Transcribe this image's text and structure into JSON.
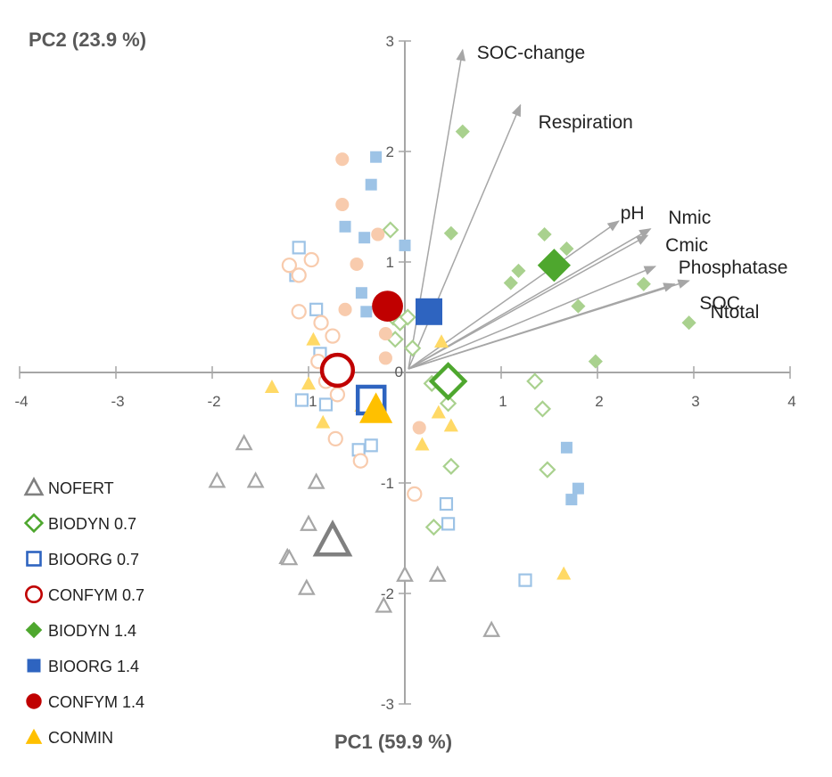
{
  "chart_data": {
    "type": "scatter",
    "title": "",
    "xlabel": "PC1 (59.9 %)",
    "ylabel": "PC2 (23.9 %)",
    "xlim": [
      -4,
      4
    ],
    "ylim": [
      -3,
      3
    ],
    "xticks": [
      "-4",
      "-3",
      "-2",
      "-1",
      "0",
      "1",
      "2",
      "3",
      "4"
    ],
    "yticks": [
      "-3",
      "-2",
      "-1",
      "0",
      "1",
      "2",
      "3"
    ],
    "grid": false,
    "legend_position": "bottom-left",
    "loadings": [
      {
        "label": "SOC-change",
        "x": 0.6,
        "y": 2.92
      },
      {
        "label": "Respiration",
        "x": 1.2,
        "y": 2.42
      },
      {
        "label": "pH",
        "x": 2.22,
        "y": 1.37
      },
      {
        "label": "Nmic",
        "x": 2.55,
        "y": 1.3
      },
      {
        "label": "Cmic",
        "x": 2.52,
        "y": 1.24
      },
      {
        "label": "Phosphatase",
        "x": 2.6,
        "y": 0.96
      },
      {
        "label": "SOC",
        "x": 2.8,
        "y": 0.8
      },
      {
        "label": "Ntotal",
        "x": 2.95,
        "y": 0.83
      }
    ],
    "series": [
      {
        "name": "NOFERT",
        "marker": "triangle",
        "fill": false,
        "color": "#808080",
        "light": "#a6a6a6",
        "points": [
          [
            -1.67,
            -0.64
          ],
          [
            -1.95,
            -0.98
          ],
          [
            -1.55,
            -0.98
          ],
          [
            -0.92,
            -0.99
          ],
          [
            -1.0,
            -1.37
          ],
          [
            -1.22,
            -1.67
          ],
          [
            -1.2,
            -1.68
          ],
          [
            -1.02,
            -1.95
          ],
          [
            -0.22,
            -2.11
          ],
          [
            0.0,
            -1.83
          ],
          [
            0.34,
            -1.83
          ],
          [
            0.9,
            -2.33
          ]
        ],
        "mean": [
          -0.75,
          -1.52
        ]
      },
      {
        "name": "BIODYN 0.7",
        "marker": "diamond",
        "fill": false,
        "color": "#4ea72e",
        "light": "#a9d18e",
        "points": [
          [
            -0.15,
            1.29
          ],
          [
            -0.1,
            0.3
          ],
          [
            -0.12,
            0.5
          ],
          [
            -0.05,
            0.45
          ],
          [
            0.03,
            0.5
          ],
          [
            0.08,
            0.22
          ],
          [
            0.28,
            -0.1
          ],
          [
            0.45,
            -0.28
          ],
          [
            0.48,
            -0.85
          ],
          [
            0.3,
            -1.4
          ],
          [
            1.35,
            -0.08
          ],
          [
            1.43,
            -0.33
          ],
          [
            1.48,
            -0.88
          ]
        ],
        "mean": [
          0.45,
          -0.08
        ]
      },
      {
        "name": "BIOORG 0.7",
        "marker": "square",
        "fill": false,
        "color": "#2e64c0",
        "light": "#9dc3e6",
        "points": [
          [
            -1.1,
            1.13
          ],
          [
            -1.13,
            0.88
          ],
          [
            -0.92,
            0.57
          ],
          [
            -0.88,
            0.17
          ],
          [
            -1.07,
            -0.25
          ],
          [
            -0.82,
            -0.29
          ],
          [
            -0.48,
            -0.7
          ],
          [
            -0.35,
            -0.66
          ],
          [
            0.43,
            -1.19
          ],
          [
            0.45,
            -1.37
          ],
          [
            1.25,
            -1.88
          ]
        ],
        "mean": [
          -0.35,
          -0.25
        ]
      },
      {
        "name": "CONFYM 0.7",
        "marker": "circle",
        "fill": false,
        "color": "#c00000",
        "light": "#f8cbad",
        "points": [
          [
            -1.2,
            0.97
          ],
          [
            -1.1,
            0.88
          ],
          [
            -0.97,
            1.02
          ],
          [
            -1.1,
            0.55
          ],
          [
            -0.9,
            0.1
          ],
          [
            -0.87,
            0.45
          ],
          [
            -0.75,
            0.33
          ],
          [
            -0.7,
            -0.2
          ],
          [
            -0.82,
            -0.08
          ],
          [
            -0.72,
            -0.6
          ],
          [
            -0.46,
            -0.8
          ],
          [
            0.1,
            -1.1
          ]
        ],
        "mean": [
          -0.7,
          0.02
        ]
      },
      {
        "name": "BIODYN 1.4",
        "marker": "diamond",
        "fill": true,
        "color": "#4ea72e",
        "light": "#a9d18e",
        "points": [
          [
            0.6,
            2.18
          ],
          [
            0.48,
            1.26
          ],
          [
            1.45,
            1.25
          ],
          [
            1.68,
            1.12
          ],
          [
            1.18,
            0.92
          ],
          [
            1.1,
            0.81
          ],
          [
            1.8,
            0.6
          ],
          [
            2.48,
            0.8
          ],
          [
            2.95,
            0.45
          ],
          [
            1.98,
            0.1
          ]
        ],
        "mean": [
          1.55,
          0.97
        ]
      },
      {
        "name": "BIOORG 1.4",
        "marker": "square",
        "fill": true,
        "color": "#2e64c0",
        "light": "#9dc3e6",
        "points": [
          [
            -0.3,
            1.95
          ],
          [
            -0.35,
            1.7
          ],
          [
            -0.62,
            1.32
          ],
          [
            -0.42,
            1.22
          ],
          [
            0.0,
            1.15
          ],
          [
            -0.45,
            0.72
          ],
          [
            -0.4,
            0.55
          ],
          [
            1.68,
            -0.68
          ],
          [
            1.8,
            -1.05
          ],
          [
            1.73,
            -1.15
          ]
        ],
        "mean": [
          0.25,
          0.55
        ]
      },
      {
        "name": "CONFYM 1.4",
        "marker": "circle",
        "fill": true,
        "color": "#c00000",
        "light": "#f8cbad",
        "points": [
          [
            -0.65,
            1.93
          ],
          [
            -0.65,
            1.52
          ],
          [
            -0.28,
            1.25
          ],
          [
            -0.5,
            0.98
          ],
          [
            -0.62,
            0.57
          ],
          [
            -0.2,
            0.35
          ],
          [
            -0.2,
            0.13
          ],
          [
            0.15,
            -0.5
          ]
        ],
        "mean": [
          -0.18,
          0.6
        ]
      },
      {
        "name": "CONMIN",
        "marker": "triangle",
        "fill": true,
        "color": "#ffc000",
        "light": "#ffd966",
        "points": [
          [
            -0.95,
            0.3
          ],
          [
            -1.0,
            -0.1
          ],
          [
            -1.38,
            -0.13
          ],
          [
            -0.85,
            -0.45
          ],
          [
            -0.45,
            -0.3
          ],
          [
            0.38,
            0.28
          ],
          [
            0.35,
            -0.36
          ],
          [
            0.48,
            -0.48
          ],
          [
            0.18,
            -0.65
          ],
          [
            1.65,
            -1.82
          ]
        ],
        "mean": [
          -0.3,
          -0.33
        ]
      }
    ]
  }
}
